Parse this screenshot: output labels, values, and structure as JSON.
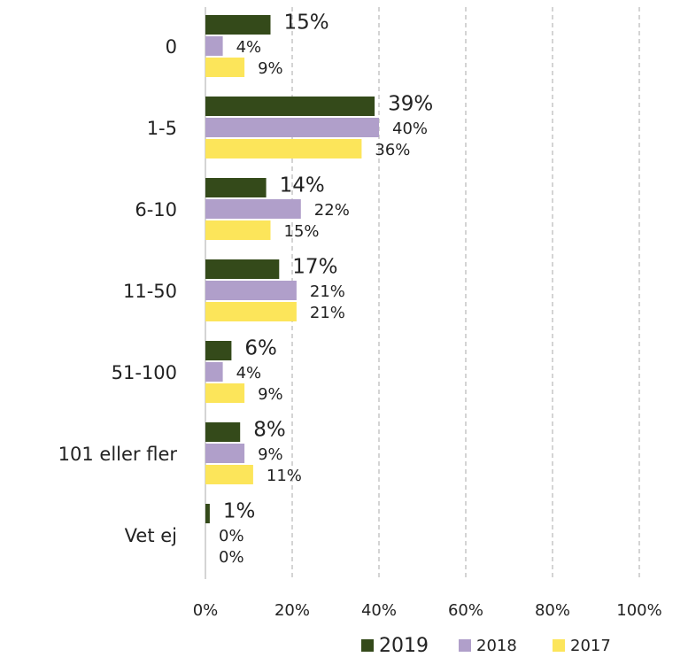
{
  "chart_data": {
    "type": "bar",
    "orientation": "horizontal",
    "categories": [
      "0",
      "1-5",
      "6-10",
      "11-50",
      "51-100",
      "101 eller fler",
      "Vet ej"
    ],
    "series": [
      {
        "name": "2019",
        "color": "#344a1a",
        "values": [
          15,
          39,
          14,
          17,
          6,
          8,
          1
        ],
        "value_labels": [
          "15%",
          "39%",
          "14%",
          "17%",
          "6%",
          "8%",
          "1%"
        ]
      },
      {
        "name": "2018",
        "color": "#b09fca",
        "values": [
          4,
          40,
          22,
          21,
          4,
          9,
          0
        ],
        "value_labels": [
          "4%",
          "40%",
          "22%",
          "21%",
          "4%",
          "9%",
          "0%"
        ]
      },
      {
        "name": "2017",
        "color": "#fce55a",
        "values": [
          9,
          36,
          15,
          21,
          9,
          11,
          0
        ],
        "value_labels": [
          "9%",
          "36%",
          "15%",
          "21%",
          "9%",
          "11%",
          "0%"
        ]
      }
    ],
    "xlim": [
      0,
      100
    ],
    "xticks": [
      {
        "value": 0,
        "label": "0%"
      },
      {
        "value": 20,
        "label": "20%"
      },
      {
        "value": 40,
        "label": "40%"
      },
      {
        "value": 60,
        "label": "60%"
      },
      {
        "value": 80,
        "label": "80%"
      },
      {
        "value": 100,
        "label": "100%"
      }
    ],
    "grid": true,
    "legend": "bottom"
  }
}
